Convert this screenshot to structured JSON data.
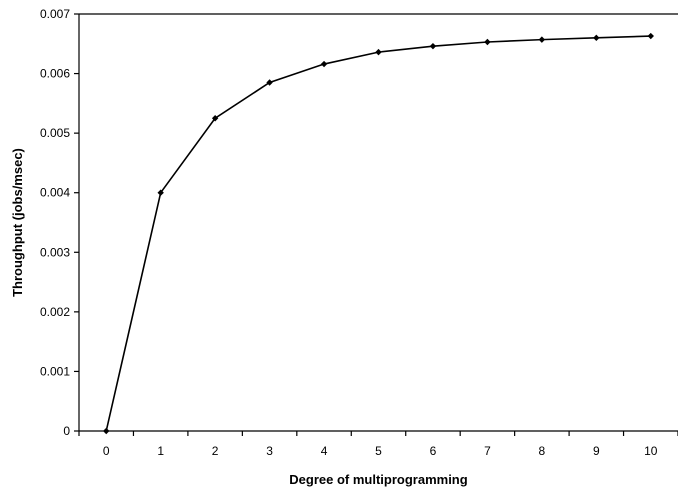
{
  "chart_data": {
    "type": "line",
    "title": "",
    "xlabel": "Degree of multiprogramming",
    "ylabel": "Throughput (jobs/msec)",
    "x": [
      0,
      1,
      2,
      3,
      4,
      5,
      6,
      7,
      8,
      9,
      10
    ],
    "series": [
      {
        "name": "",
        "values": [
          0,
          0.004,
          0.00525,
          0.00585,
          0.00616,
          0.00636,
          0.00646,
          0.00653,
          0.00657,
          0.0066,
          0.00663
        ]
      }
    ],
    "xticks": [
      "0",
      "1",
      "2",
      "3",
      "4",
      "5",
      "6",
      "7",
      "8",
      "9",
      "10"
    ],
    "yticks": [
      "0",
      "0.001",
      "0.002",
      "0.003",
      "0.004",
      "0.005",
      "0.006",
      "0.007"
    ],
    "xlim": [
      -0.5,
      10.5
    ],
    "ylim": [
      0,
      0.007
    ],
    "grid": false,
    "legend": "none",
    "line_color": "#000000",
    "marker": "diamond"
  }
}
